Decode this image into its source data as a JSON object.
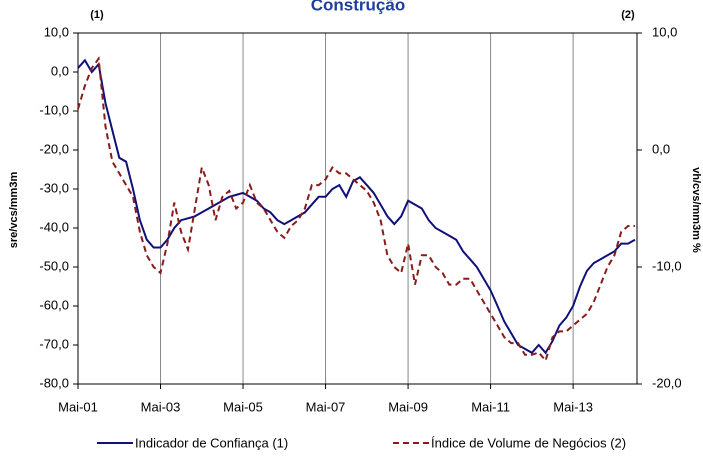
{
  "chart_data": {
    "type": "line",
    "title": "Construção",
    "y_axis_label": "sre/vcs/mm3m",
    "y2_axis_label": "vh/cvs/mm3m %",
    "y_axis_note": "(1)",
    "y2_axis_note": "(2)",
    "categories": [
      "Mai-01",
      null,
      null,
      null,
      null,
      null,
      null,
      null,
      null,
      null,
      null,
      null,
      "Mai-03",
      null,
      null,
      null,
      null,
      null,
      null,
      null,
      null,
      null,
      null,
      null,
      "Mai-05",
      null,
      null,
      null,
      null,
      null,
      null,
      null,
      null,
      null,
      null,
      null,
      "Mai-07",
      null,
      null,
      null,
      null,
      null,
      null,
      null,
      null,
      null,
      null,
      null,
      "Mai-09",
      null,
      null,
      null,
      null,
      null,
      null,
      null,
      null,
      null,
      null,
      null,
      "Mai-11",
      null,
      null,
      null,
      null,
      null,
      null,
      null,
      null,
      null,
      null,
      null,
      "Mai-13",
      null,
      null,
      null,
      null,
      null,
      null,
      null,
      null,
      null
    ],
    "series": [
      {
        "name": "Indicador de Confiança (1)",
        "color": "#10107a",
        "dashed": false,
        "values": [
          1,
          3,
          0,
          2,
          -8,
          -15,
          -22,
          -23,
          -30,
          -38,
          -43,
          -45,
          -45,
          -43,
          -40,
          -38,
          -37.5,
          -37,
          -36,
          -35,
          -34,
          -33,
          -32,
          -31.5,
          -31,
          -32,
          -33,
          -35,
          -36,
          -38,
          -39,
          -38,
          -37,
          -36,
          -34,
          -32,
          -32,
          -30,
          -29,
          -32,
          -28,
          -27,
          -29,
          -31,
          -34,
          -37,
          -39,
          -37,
          -33,
          -34,
          -35,
          -38,
          -40,
          -41,
          -42,
          -43,
          -46,
          -48,
          -50,
          -53,
          -56,
          -60,
          -64,
          -67,
          -70,
          -71,
          -72,
          -70,
          -72,
          -69,
          -65,
          -63,
          -60,
          -55,
          -51,
          -49,
          -48,
          -47,
          -46,
          -44,
          -44,
          -43
        ]
      },
      {
        "name": "Índice de Volume de Negócios (2)",
        "color": "#8b1a1a",
        "dashed": true,
        "axis": "y2",
        "values": [
          3.5,
          5.5,
          7,
          7.8,
          2,
          -1,
          -2,
          -3,
          -4,
          -7,
          -9,
          -10,
          -10.5,
          -8,
          -4.5,
          -7,
          -8.5,
          -5,
          -1.5,
          -3,
          -6,
          -4,
          -3.5,
          -5,
          -4.5,
          -3,
          -4.5,
          -5,
          -6,
          -7,
          -7.5,
          -6.5,
          -6,
          -5,
          -3,
          -3,
          -2.5,
          -1.5,
          -2,
          -2,
          -2.5,
          -3,
          -3.5,
          -4.5,
          -6,
          -9,
          -10,
          -10.5,
          -8,
          -11.5,
          -9,
          -9,
          -10,
          -10.5,
          -11.5,
          -11.5,
          -11,
          -11,
          -12,
          -13,
          -14,
          -15,
          -16,
          -16.5,
          -16.5,
          -17.5,
          -17.5,
          -17.3,
          -18,
          -16,
          -15.5,
          -15.5,
          -15,
          -14.5,
          -14,
          -13,
          -11.5,
          -10,
          -9,
          -7,
          -6.5,
          -6.5
        ]
      }
    ],
    "ylim": [
      -80,
      10
    ],
    "yticks": [
      {
        "value": -80,
        "label": "-80,0"
      },
      {
        "value": -70,
        "label": "-70,0"
      },
      {
        "value": -60,
        "label": "-60,0"
      },
      {
        "value": -50,
        "label": "-50,0"
      },
      {
        "value": -40,
        "label": "-40,0"
      },
      {
        "value": -30,
        "label": "-30,0"
      },
      {
        "value": -20,
        "label": "-20,0"
      },
      {
        "value": -10,
        "label": "-10,0"
      },
      {
        "value": 0,
        "label": "0,0"
      },
      {
        "value": 10,
        "label": "10,0"
      }
    ],
    "y2lim": [
      -20,
      10
    ],
    "y2ticks": [
      {
        "value": -20,
        "label": "-20,0"
      },
      {
        "value": -10,
        "label": "-10,0"
      },
      {
        "value": 0,
        "label": "0,0"
      },
      {
        "value": 10,
        "label": "10,0"
      }
    ],
    "legend": "bottom"
  }
}
